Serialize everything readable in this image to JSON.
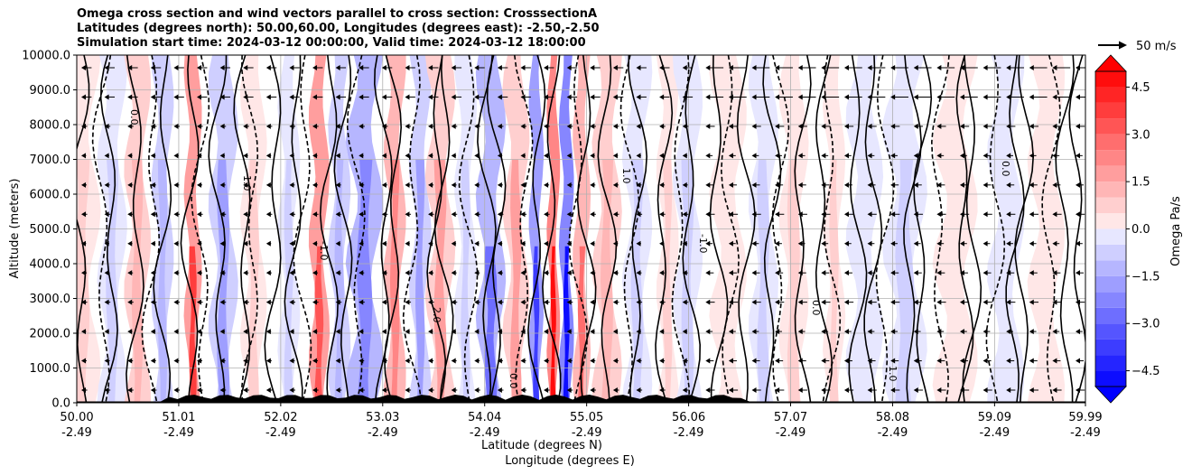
{
  "title_lines": [
    "Omega cross section and wind vectors parallel to cross section: CrosssectionA",
    "Latitudes (degrees north): 50.00,60.00, Longitudes (degrees east): -2.50,-2.50",
    "Simulation start time: 2024-03-12 00:00:00, Valid time: 2024-03-12 18:00:00"
  ],
  "chart_data": {
    "type": "heatmap",
    "description_kind": "filled contour cross section with contour lines and wind vectors",
    "ylabel": "Altitude (meters)",
    "xlabel_lines": [
      "Latitude (degrees N)",
      "Longitude (degrees E)"
    ],
    "ylim": [
      0,
      10000
    ],
    "xlim": [
      50.0,
      59.99
    ],
    "y_ticks": [
      0,
      1000,
      2000,
      3000,
      4000,
      5000,
      6000,
      7000,
      8000,
      9000,
      10000
    ],
    "y_tick_labels": [
      "0.0",
      "1000.0",
      "2000.0",
      "3000.0",
      "4000.0",
      "5000.0",
      "6000.0",
      "7000.0",
      "8000.0",
      "9000.0",
      "10000.0"
    ],
    "x_ticks": [
      50.0,
      51.01,
      52.02,
      53.03,
      54.04,
      55.05,
      56.06,
      57.07,
      58.08,
      59.09,
      59.99
    ],
    "x_tick_labels_lat": [
      "50.00",
      "51.01",
      "52.02",
      "53.03",
      "54.04",
      "55.05",
      "56.06",
      "57.07",
      "58.08",
      "59.09",
      "59.99"
    ],
    "x_tick_labels_lon": [
      "-2.49",
      "-2.49",
      "-2.49",
      "-2.49",
      "-2.49",
      "-2.49",
      "-2.49",
      "-2.49",
      "-2.49",
      "-2.49",
      "-2.49"
    ],
    "grid": true,
    "colorbar": {
      "label": "Omega Pa/s",
      "range": [
        -5.0,
        5.0
      ],
      "tick_values": [
        4.5,
        3.0,
        1.5,
        0.0,
        -1.5,
        -3.0,
        -4.5
      ],
      "tick_labels": [
        "4.5",
        "3.0",
        "1.5",
        "0.0",
        "−1.5",
        "−3.0",
        "−4.5"
      ],
      "extend": "both",
      "positive_color": "#ff0000",
      "negative_color": "#0000ff"
    },
    "quiver_key_label": "50 m/s",
    "contour_labels": [
      "0.0",
      "1.0",
      "-1.0",
      "2.0",
      "0.0",
      "1.0",
      "-1.0",
      "0.0",
      "1.0",
      "0.0"
    ],
    "omega_bands": [
      {
        "x": 50.05,
        "w": 0.25,
        "v": 0.6
      },
      {
        "x": 50.35,
        "w": 0.2,
        "v": -0.7
      },
      {
        "x": 50.6,
        "w": 0.18,
        "v": 1.4
      },
      {
        "x": 50.85,
        "w": 0.15,
        "v": -1.2
      },
      {
        "x": 51.15,
        "w": 0.12,
        "v": 3.8
      },
      {
        "x": 51.45,
        "w": 0.2,
        "v": -2.0
      },
      {
        "x": 51.75,
        "w": 0.18,
        "v": 0.8
      },
      {
        "x": 52.1,
        "w": 0.15,
        "v": -1.0
      },
      {
        "x": 52.4,
        "w": 0.14,
        "v": 3.2
      },
      {
        "x": 52.6,
        "w": 0.15,
        "v": -1.3
      },
      {
        "x": 52.85,
        "w": 0.25,
        "v": -2.4
      },
      {
        "x": 53.15,
        "w": 0.15,
        "v": 2.2
      },
      {
        "x": 53.4,
        "w": 0.15,
        "v": -1.8
      },
      {
        "x": 53.6,
        "w": 0.2,
        "v": 1.6
      },
      {
        "x": 53.85,
        "w": 0.15,
        "v": -1.0
      },
      {
        "x": 54.1,
        "w": 0.2,
        "v": -2.6
      },
      {
        "x": 54.35,
        "w": 0.18,
        "v": 1.8
      },
      {
        "x": 54.55,
        "w": 0.1,
        "v": -3.8
      },
      {
        "x": 54.72,
        "w": 0.09,
        "v": 4.8
      },
      {
        "x": 54.85,
        "w": 0.1,
        "v": -4.6
      },
      {
        "x": 55.0,
        "w": 0.12,
        "v": 2.6
      },
      {
        "x": 55.25,
        "w": 0.2,
        "v": 1.4
      },
      {
        "x": 55.55,
        "w": 0.2,
        "v": -0.8
      },
      {
        "x": 55.85,
        "w": 0.15,
        "v": 0.9
      },
      {
        "x": 56.05,
        "w": 0.2,
        "v": -0.6
      },
      {
        "x": 56.45,
        "w": 0.25,
        "v": 0.5
      },
      {
        "x": 56.8,
        "w": 0.2,
        "v": -0.9
      },
      {
        "x": 57.1,
        "w": 0.2,
        "v": 0.7
      },
      {
        "x": 57.5,
        "w": 0.15,
        "v": 0.9
      },
      {
        "x": 57.8,
        "w": 0.25,
        "v": -0.5
      },
      {
        "x": 58.2,
        "w": 0.3,
        "v": -0.6
      },
      {
        "x": 58.7,
        "w": 0.3,
        "v": 0.3
      },
      {
        "x": 59.2,
        "w": 0.25,
        "v": -0.3
      },
      {
        "x": 59.6,
        "w": 0.25,
        "v": 0.4
      }
    ]
  }
}
